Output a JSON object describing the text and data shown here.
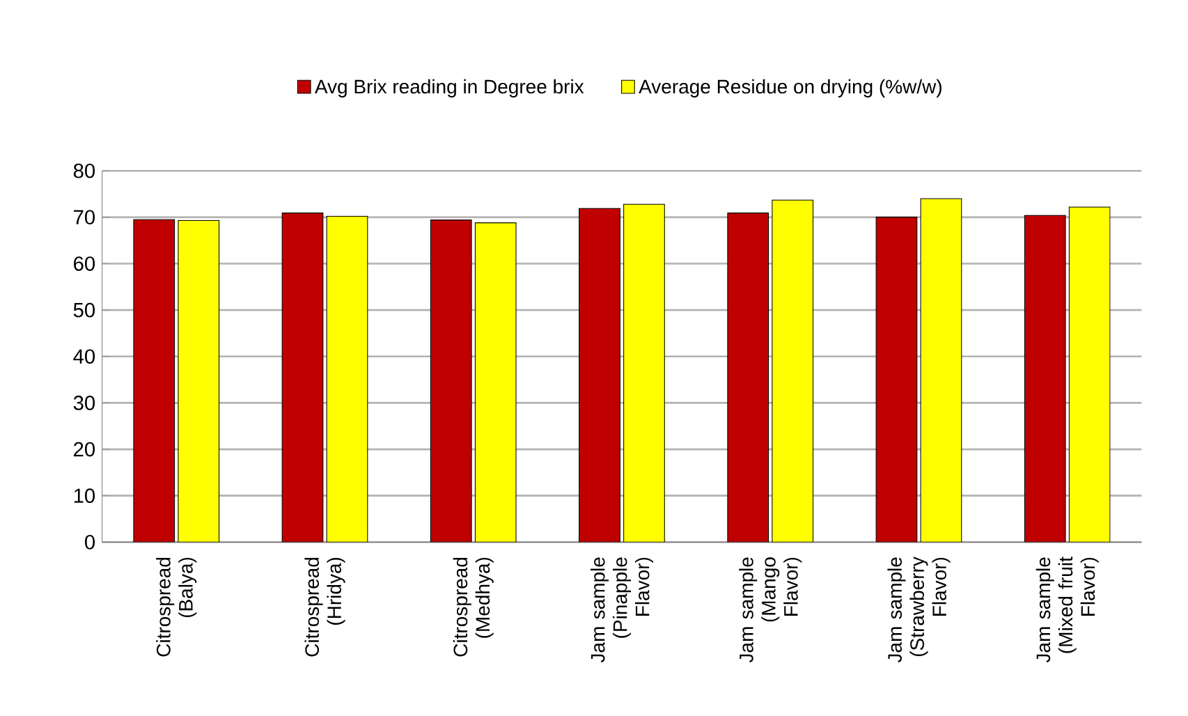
{
  "chart_data": {
    "type": "bar",
    "categories": [
      "Citrospread (Balya)",
      "Citrospread (Hridya)",
      "Citrospread (Medhya)",
      "Jam sample (Pinapple Flavor)",
      "Jam sample (Mango Flavor)",
      "Jam sample (Strawberry Flavor)",
      "Jam sample (Mixed fruit Flavor)"
    ],
    "series": [
      {
        "name": "Avg Brix reading in Degree brix",
        "color": "#c00000",
        "values": [
          69.5,
          70.9,
          69.4,
          71.9,
          70.9,
          70.0,
          70.4
        ]
      },
      {
        "name": "Average Residue on drying (%w/w)",
        "color": "#ffff00",
        "values": [
          69.3,
          70.2,
          68.8,
          72.8,
          73.7,
          74.0,
          72.2
        ]
      }
    ],
    "ylim": [
      0,
      80
    ],
    "yticks": [
      0,
      10,
      20,
      30,
      40,
      50,
      60,
      70,
      80
    ],
    "grid": "y",
    "legend": "top"
  }
}
